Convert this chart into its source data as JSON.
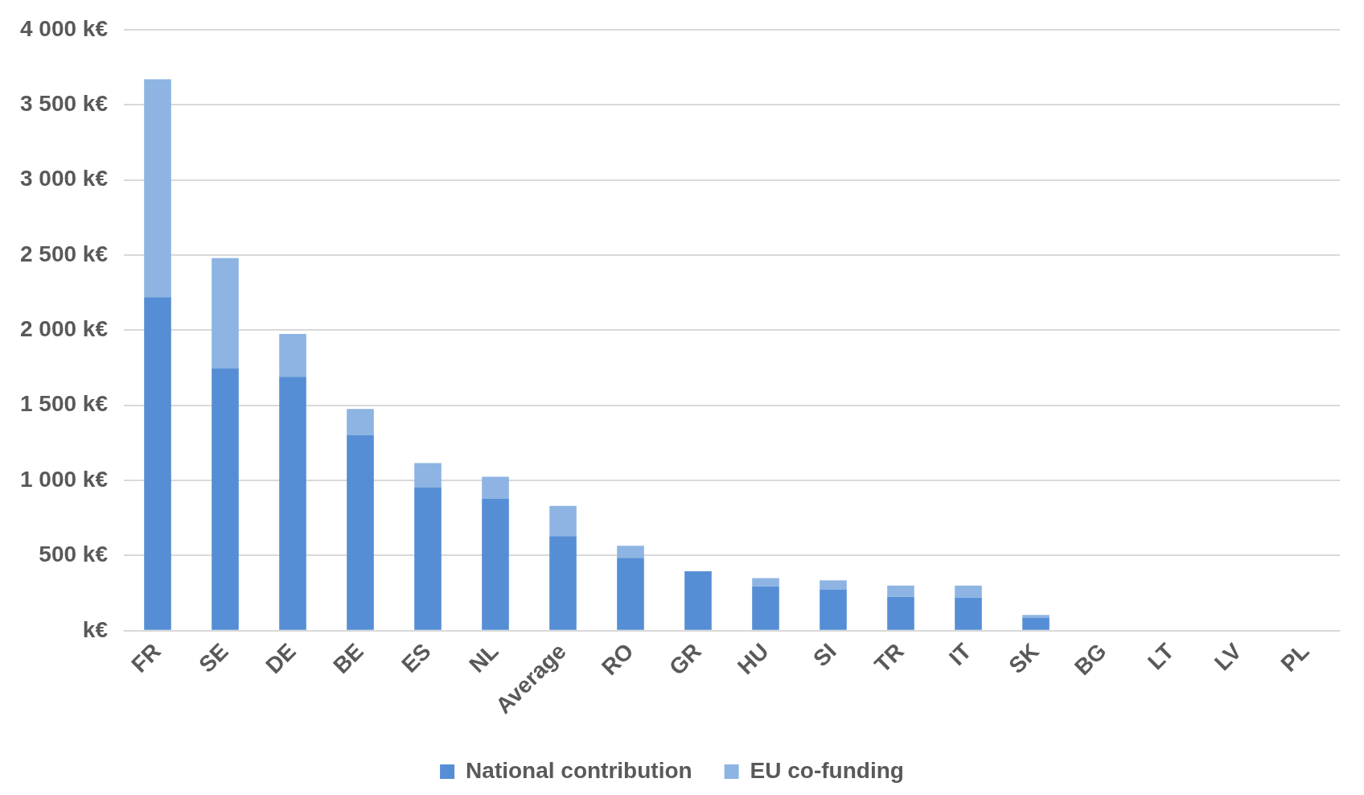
{
  "chart_data": {
    "type": "bar",
    "stacked": true,
    "categories": [
      "FR",
      "SE",
      "DE",
      "BE",
      "ES",
      "NL",
      "Average",
      "RO",
      "GR",
      "HU",
      "SI",
      "TR",
      "IT",
      "SK",
      "BG",
      "LT",
      "LV",
      "PL"
    ],
    "series": [
      {
        "name": "National contribution",
        "color": "#558ed5",
        "values": [
          2220,
          1745,
          1690,
          1300,
          955,
          880,
          630,
          485,
          395,
          295,
          275,
          225,
          220,
          85,
          0,
          0,
          0,
          0
        ]
      },
      {
        "name": "EU co-funding",
        "color": "#8db4e2",
        "values": [
          1450,
          735,
          285,
          175,
          160,
          145,
          200,
          80,
          0,
          55,
          60,
          75,
          80,
          20,
          0,
          0,
          0,
          0
        ]
      }
    ],
    "ylim": [
      0,
      4000
    ],
    "yticks": [
      {
        "value": 0,
        "label": "k€"
      },
      {
        "value": 500,
        "label": "500 k€"
      },
      {
        "value": 1000,
        "label": "1 000 k€"
      },
      {
        "value": 1500,
        "label": "1 500 k€"
      },
      {
        "value": 2000,
        "label": "2 000 k€"
      },
      {
        "value": 2500,
        "label": "2 500 k€"
      },
      {
        "value": 3000,
        "label": "3 000 k€"
      },
      {
        "value": 3500,
        "label": "3 500 k€"
      },
      {
        "value": 4000,
        "label": "4 000 k€"
      }
    ],
    "grid": "y",
    "legend": "bottom"
  }
}
